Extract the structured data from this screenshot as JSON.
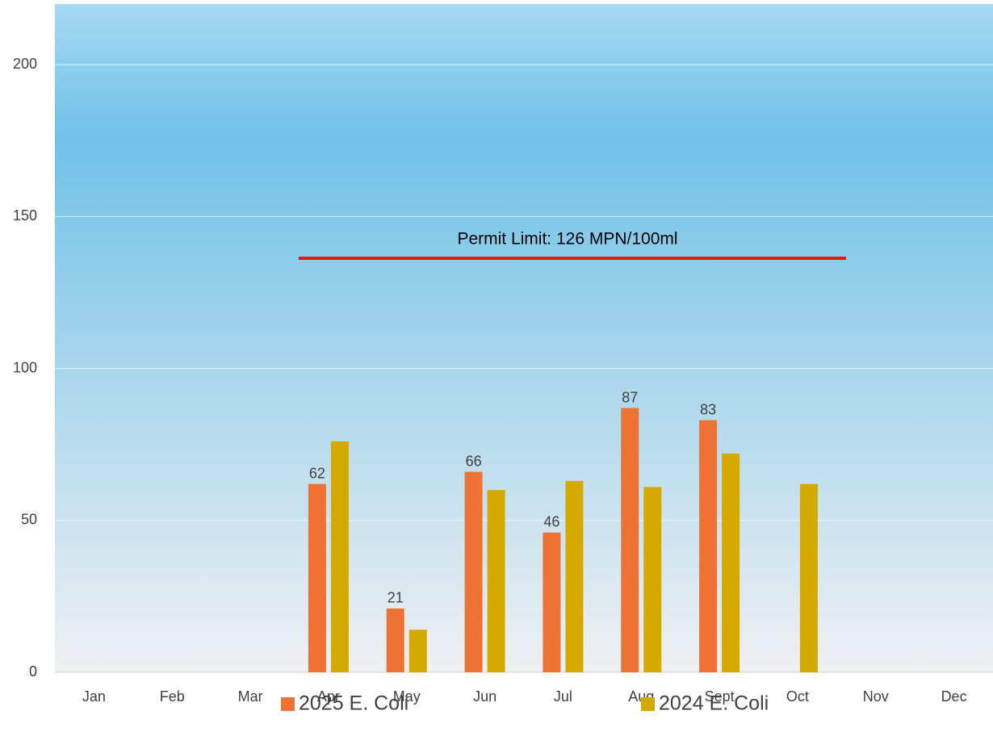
{
  "chart_data": {
    "type": "bar",
    "annotation": "Permit Limit: 126 MPN/100ml",
    "categories": [
      "Jan",
      "Feb",
      "Mar",
      "Apr",
      "May",
      "Jun",
      "Jul",
      "Aug",
      "Sept",
      "Oct",
      "Nov",
      "Dec"
    ],
    "series": [
      {
        "name": "2025 E. Coli",
        "color": "#ed7233",
        "values": [
          null,
          null,
          null,
          62,
          21,
          66,
          46,
          87,
          83,
          null,
          null,
          null
        ]
      },
      {
        "name": "2024 E. Coli",
        "color": "#d4aa00",
        "values": [
          null,
          null,
          null,
          76,
          14,
          60,
          63,
          61,
          72,
          62,
          null,
          null
        ]
      }
    ],
    "data_labels_series": [
      0
    ],
    "ylim": [
      0,
      220
    ],
    "yticks": [
      0,
      50,
      100,
      150,
      200
    ],
    "grid": true,
    "legend": "bottom"
  }
}
